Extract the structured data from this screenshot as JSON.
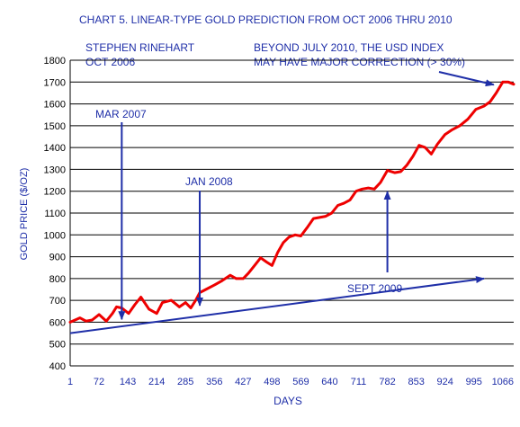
{
  "chart_data": {
    "type": "line",
    "title": "CHART 5. LINEAR-TYPE GOLD PREDICTION FROM OCT 2006 THRU 2010",
    "xlabel": "DAYS",
    "ylabel": "GOLD PRICE ($/OZ)",
    "xlim": [
      1,
      1093
    ],
    "ylim": [
      400,
      1800
    ],
    "x_ticks": [
      1,
      72,
      143,
      214,
      285,
      356,
      427,
      498,
      569,
      640,
      711,
      782,
      853,
      924,
      995,
      1066
    ],
    "y_ticks": [
      400,
      500,
      600,
      700,
      800,
      900,
      1000,
      1100,
      1200,
      1300,
      1400,
      1500,
      1600,
      1700,
      1800
    ],
    "grid": "horizontal",
    "colors": {
      "series": "#ee0000",
      "text": "#1f2fa8",
      "trend": "#1f2fa8"
    },
    "series": [
      {
        "x": [
          1,
          25,
          40,
          55,
          72,
          90,
          105,
          115,
          128,
          145,
          160,
          175,
          195,
          214,
          228,
          250,
          270,
          285,
          298,
          310,
          320,
          335,
          356,
          375,
          395,
          410,
          427,
          440,
          455,
          470,
          485,
          498,
          512,
          526,
          540,
          555,
          569,
          585,
          600,
          615,
          630,
          645,
          660,
          675,
          690,
          705,
          720,
          735,
          750,
          765,
          782,
          800,
          815,
          830,
          845,
          860,
          875,
          890,
          905,
          924,
          940,
          960,
          980,
          1000,
          1020,
          1035,
          1050,
          1066,
          1080,
          1093
        ],
        "values": [
          600,
          620,
          605,
          610,
          635,
          605,
          640,
          670,
          665,
          640,
          680,
          715,
          660,
          640,
          690,
          700,
          670,
          690,
          665,
          700,
          735,
          750,
          770,
          790,
          815,
          800,
          800,
          825,
          860,
          895,
          875,
          860,
          920,
          965,
          990,
          1000,
          995,
          1035,
          1075,
          1080,
          1085,
          1100,
          1135,
          1145,
          1160,
          1200,
          1210,
          1215,
          1210,
          1240,
          1295,
          1285,
          1290,
          1320,
          1360,
          1410,
          1400,
          1370,
          1415,
          1460,
          1480,
          1500,
          1530,
          1575,
          1590,
          1610,
          1650,
          1700,
          1700,
          1690
        ]
      }
    ],
    "trend_line": {
      "x": [
        1,
        1020
      ],
      "values": [
        550,
        800
      ]
    },
    "annotations": [
      {
        "text": "STEPHEN  RINEHART"
      },
      {
        "text": "OCT 2006"
      },
      {
        "text": "BEYOND JULY 2010, THE USD INDEX"
      },
      {
        "text": "MAY HAVE MAJOR CORRECTION (> 30%)"
      },
      {
        "text": "MAR 2007",
        "x": 128,
        "y": 605
      },
      {
        "text": "JAN 2008",
        "x": 320,
        "y": 660
      },
      {
        "text": "SEPT 2009",
        "x": 782,
        "y": 1215
      }
    ]
  }
}
